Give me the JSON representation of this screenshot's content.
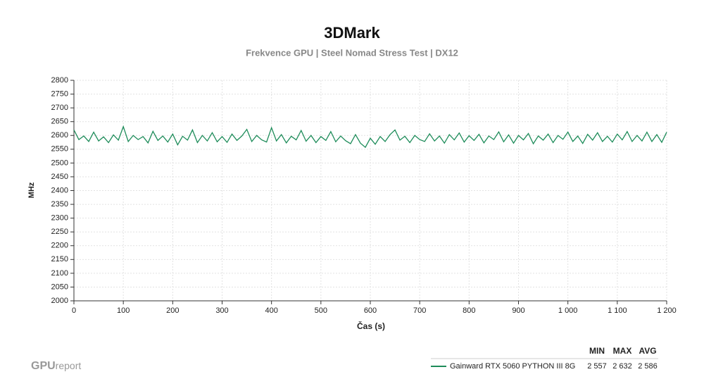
{
  "chart_data": {
    "type": "line",
    "title": "3DMark",
    "subtitle": "Frekvence GPU | Steel Nomad Stress Test | DX12",
    "x_label": "Čas (s)",
    "y_label": "MHz",
    "xlim": [
      0,
      1200
    ],
    "ylim": [
      2000,
      2800
    ],
    "xticks": [
      0,
      100,
      200,
      300,
      400,
      500,
      600,
      700,
      800,
      900,
      {
        "value": 1000,
        "label": "1 000"
      },
      {
        "value": 1100,
        "label": "1 100"
      },
      {
        "value": 1200,
        "label": "1 200"
      }
    ],
    "yticks": [
      2000,
      2050,
      2100,
      2150,
      2200,
      2250,
      2300,
      2350,
      2400,
      2450,
      2500,
      2550,
      2600,
      2650,
      2700,
      2750,
      2800
    ],
    "grid": true,
    "stat_headers": [
      "MIN",
      "MAX",
      "AVG"
    ],
    "watermark": [
      "GPU",
      "report"
    ],
    "x": [
      0,
      10,
      20,
      30,
      40,
      50,
      60,
      70,
      80,
      90,
      100,
      110,
      120,
      130,
      140,
      150,
      160,
      170,
      180,
      190,
      200,
      210,
      220,
      230,
      240,
      250,
      260,
      270,
      280,
      290,
      300,
      310,
      320,
      330,
      340,
      350,
      360,
      370,
      380,
      390,
      400,
      410,
      420,
      430,
      440,
      450,
      460,
      470,
      480,
      490,
      500,
      510,
      520,
      530,
      540,
      550,
      560,
      570,
      580,
      590,
      600,
      610,
      620,
      630,
      640,
      650,
      660,
      670,
      680,
      690,
      700,
      710,
      720,
      730,
      740,
      750,
      760,
      770,
      780,
      790,
      800,
      810,
      820,
      830,
      840,
      850,
      860,
      870,
      880,
      890,
      900,
      910,
      920,
      930,
      940,
      950,
      960,
      970,
      980,
      990,
      1000,
      1010,
      1020,
      1030,
      1040,
      1050,
      1060,
      1070,
      1080,
      1090,
      1100,
      1110,
      1120,
      1130,
      1140,
      1150,
      1160,
      1170,
      1180,
      1190,
      1200
    ],
    "series": [
      {
        "name": "Gainward RTX 5060 PYTHON III 8G",
        "color": "#1e8c5a",
        "stats": [
          {
            "value": 2557,
            "label": "2 557"
          },
          {
            "value": 2632,
            "label": "2 632"
          },
          {
            "value": 2586,
            "label": "2 586"
          }
        ],
        "values": [
          2620,
          2585,
          2598,
          2578,
          2612,
          2580,
          2595,
          2574,
          2602,
          2583,
          2632,
          2578,
          2600,
          2585,
          2596,
          2573,
          2615,
          2582,
          2598,
          2576,
          2605,
          2566,
          2597,
          2583,
          2620,
          2574,
          2600,
          2580,
          2610,
          2577,
          2596,
          2575,
          2605,
          2582,
          2598,
          2622,
          2578,
          2600,
          2584,
          2576,
          2628,
          2580,
          2603,
          2573,
          2597,
          2584,
          2618,
          2579,
          2600,
          2574,
          2596,
          2582,
          2614,
          2577,
          2598,
          2581,
          2570,
          2603,
          2572,
          2557,
          2590,
          2568,
          2596,
          2578,
          2603,
          2620,
          2583,
          2597,
          2574,
          2600,
          2585,
          2578,
          2606,
          2580,
          2598,
          2572,
          2603,
          2584,
          2609,
          2576,
          2599,
          2582,
          2604,
          2573,
          2598,
          2585,
          2613,
          2577,
          2602,
          2572,
          2600,
          2584,
          2607,
          2570,
          2598,
          2583,
          2605,
          2574,
          2600,
          2586,
          2612,
          2578,
          2598,
          2571,
          2604,
          2583,
          2610,
          2578,
          2597,
          2576,
          2605,
          2584,
          2614,
          2578,
          2600,
          2580,
          2612,
          2578,
          2603,
          2575,
          2612
        ]
      }
    ]
  }
}
